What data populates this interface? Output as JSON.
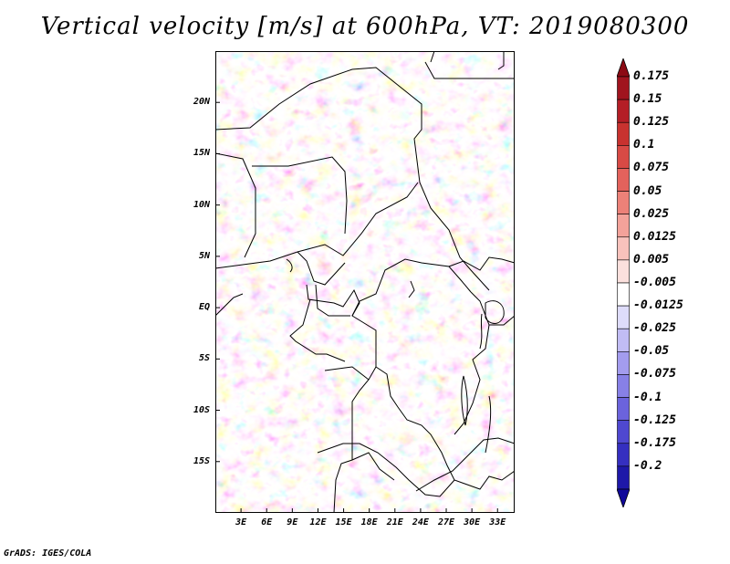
{
  "title": "Vertical velocity [m/s] at 600hPa, VT: 2019080300",
  "footer": "GrADS: IGES/COLA",
  "map": {
    "variable": "Vertical velocity",
    "units": "m/s",
    "level": "600hPa",
    "valid_time": "2019080300",
    "lon_range": [
      0,
      35
    ],
    "lat_range": [
      -20,
      25
    ],
    "lat_ticks": [
      {
        "lat": 20,
        "label": "20N"
      },
      {
        "lat": 15,
        "label": "15N"
      },
      {
        "lat": 10,
        "label": "10N"
      },
      {
        "lat": 5,
        "label": "5N"
      },
      {
        "lat": 0,
        "label": "EQ"
      },
      {
        "lat": -5,
        "label": "5S"
      },
      {
        "lat": -10,
        "label": "10S"
      },
      {
        "lat": -15,
        "label": "15S"
      }
    ],
    "lon_ticks": [
      {
        "lon": 3,
        "label": "3E"
      },
      {
        "lon": 6,
        "label": "6E"
      },
      {
        "lon": 9,
        "label": "9E"
      },
      {
        "lon": 12,
        "label": "12E"
      },
      {
        "lon": 15,
        "label": "15E"
      },
      {
        "lon": 18,
        "label": "18E"
      },
      {
        "lon": 21,
        "label": "21E"
      },
      {
        "lon": 24,
        "label": "24E"
      },
      {
        "lon": 27,
        "label": "27E"
      },
      {
        "lon": 30,
        "label": "30E"
      },
      {
        "lon": 33,
        "label": "33E"
      }
    ]
  },
  "colorbar": {
    "levels": [
      {
        "label": "0.175",
        "color": "#a0141e"
      },
      {
        "label": "0.15",
        "color": "#b41e26"
      },
      {
        "label": "0.125",
        "color": "#c8322f"
      },
      {
        "label": "0.1",
        "color": "#d84a45"
      },
      {
        "label": "0.075",
        "color": "#e3625c"
      },
      {
        "label": "0.05",
        "color": "#ec8178"
      },
      {
        "label": "0.025",
        "color": "#f3a29a"
      },
      {
        "label": "0.0125",
        "color": "#f8c2bc"
      },
      {
        "label": "0.005",
        "color": "#fbe0dd"
      },
      {
        "label": "-0.005",
        "color": "#ffffff"
      },
      {
        "label": "-0.0125",
        "color": "#dedcfa"
      },
      {
        "label": "-0.025",
        "color": "#c1bcf4"
      },
      {
        "label": "-0.05",
        "color": "#a39cee"
      },
      {
        "label": "-0.075",
        "color": "#8780e6"
      },
      {
        "label": "-0.1",
        "color": "#6b63dc"
      },
      {
        "label": "-0.125",
        "color": "#4f48d0"
      },
      {
        "label": "-0.175",
        "color": "#352fc0"
      },
      {
        "label": "-0.2",
        "color": "#1e18a8"
      }
    ],
    "under_color": "#10089a",
    "over_color": "#8c0a14"
  }
}
